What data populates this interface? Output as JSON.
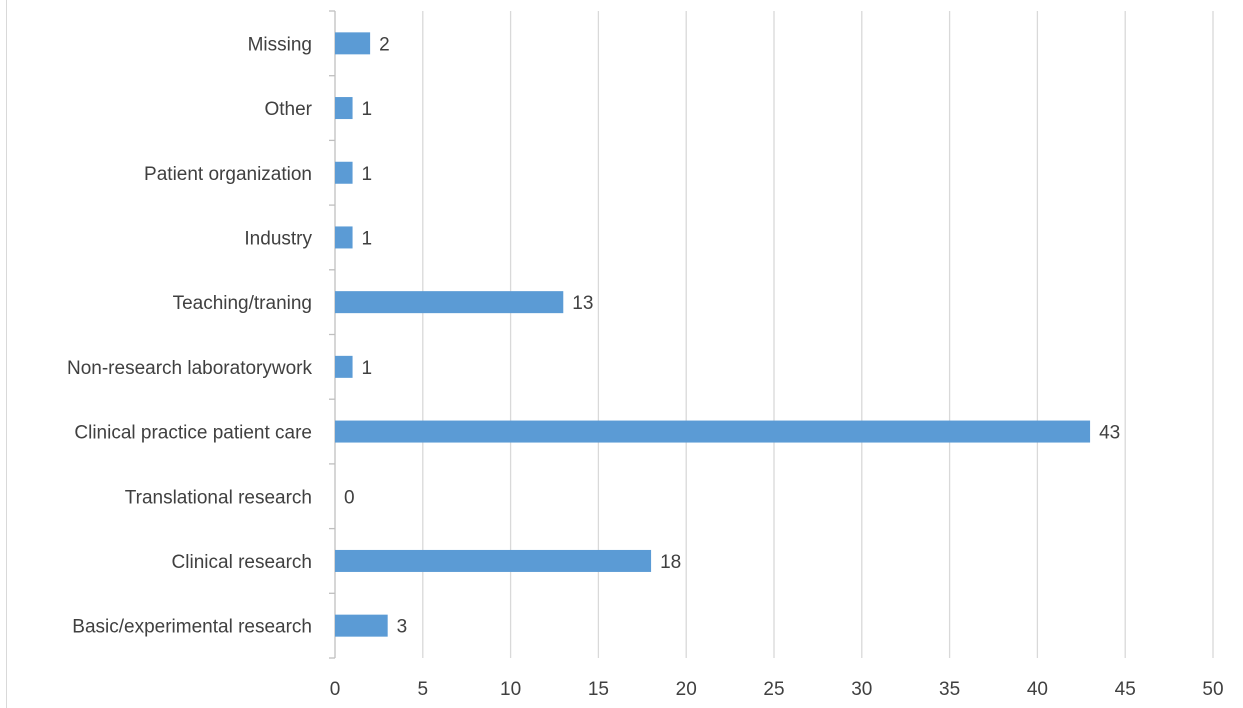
{
  "chart_data": {
    "type": "bar",
    "orientation": "horizontal",
    "categories": [
      "Missing",
      "Other",
      "Patient organization",
      "Industry",
      "Teaching/traning",
      "Non-research laboratorywork",
      "Clinical practice patient care",
      "Translational research",
      "Clinical research",
      "Basic/experimental research"
    ],
    "values": [
      2,
      1,
      1,
      1,
      13,
      1,
      43,
      0,
      18,
      3
    ],
    "x_ticks": [
      "0",
      "5",
      "10",
      "15",
      "20",
      "25",
      "30",
      "35",
      "40",
      "45",
      "50"
    ],
    "xlim": [
      0,
      50
    ],
    "title": "",
    "xlabel": "",
    "ylabel": "",
    "grid": "vertical",
    "legend": "none",
    "data_labels": true,
    "colors": {
      "bar": "#5b9bd5",
      "grid": "#d9d9d9",
      "axis": "#bfbfbf",
      "text": "#404040"
    }
  }
}
